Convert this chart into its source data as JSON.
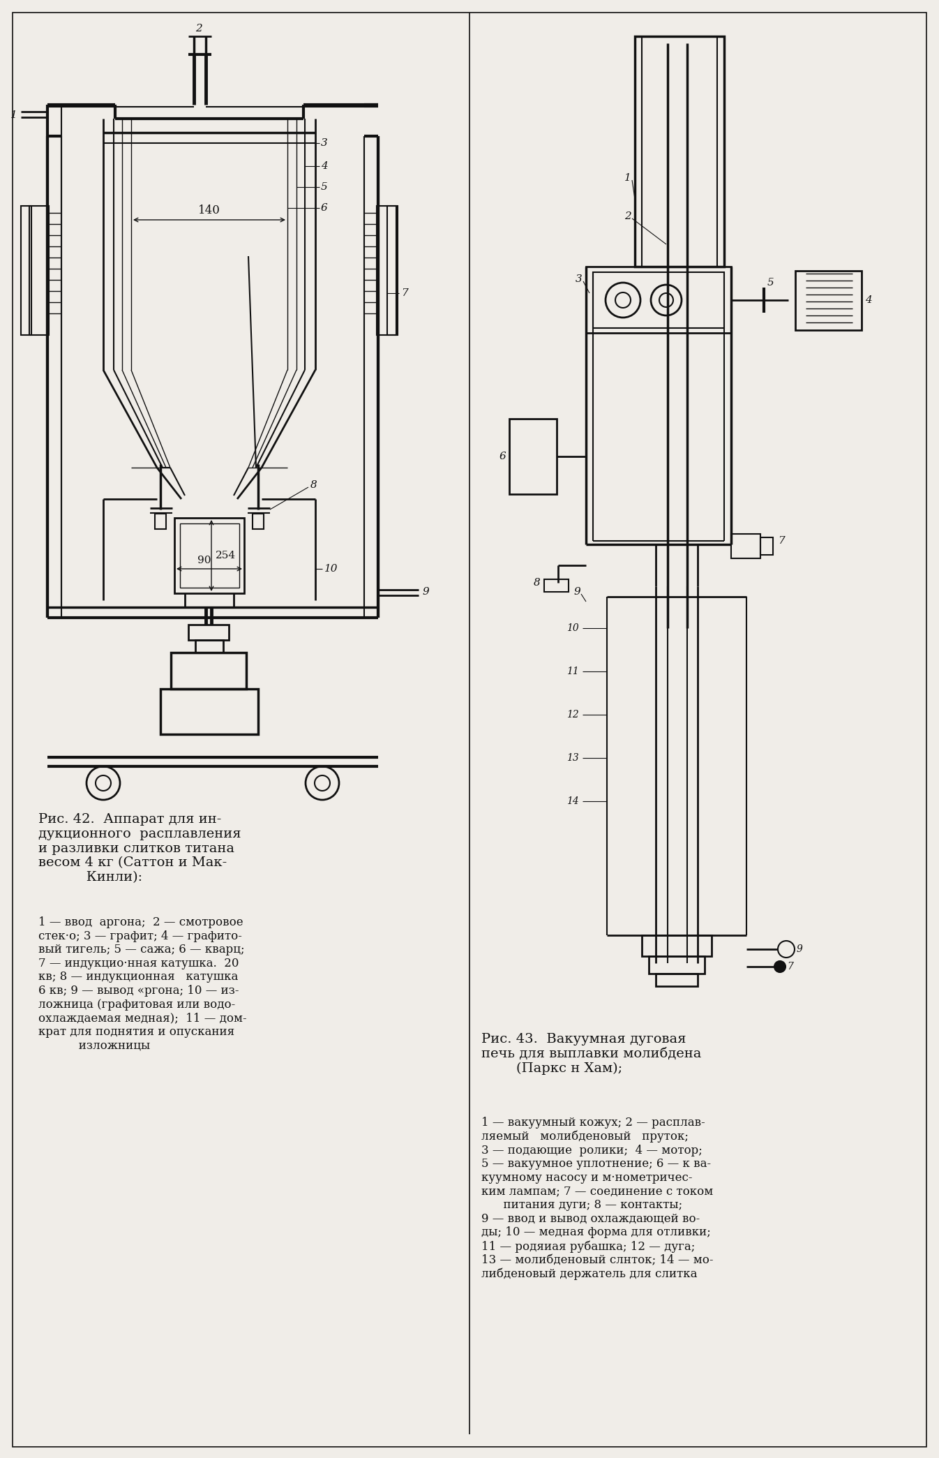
{
  "background_color": "#f0ede8",
  "line_color": "#111111",
  "text_color": "#111111",
  "fig42_caption_title": "Рис. 42.  Аппарат для ин-\nдукционного  расплавления\nи разливки слитков титана\nвесом 4 кг (Саттон и Мак-\n           Кинли):",
  "fig42_caption_body": "1 — ввод  аргона;  2 — смотровое\nстек·о; 3 — графит; 4 — графито-\nвый тигель; 5 — сажа; 6 — кварц;\n7 — индукцио·нная катушка.  20\nкв; 8 — индукционная   катушка\n6 кв; 9 — вывод «ргона; 10 — из-\nложница (графитовая или водо-\nохлаждаемая медная);  11 — дом-\nкрат для поднятия и опускания\n           изложницы",
  "fig43_caption_title": "Рис. 43.  Вакуумная дуговая\nпечь для выплавки молибдена\n        (Паркс н Хам);",
  "fig43_caption_body": "1 — вакуумный кожух; 2 — расплав-\nляемый   молибденовый   пруток;\n3 — подающие  ролики;  4 — мотор;\n5 — вакуумное уплотнение; 6 — к ва-\nкуумному насосу и м·нометричес-\nким лампам; 7 — соединение с током\n      питания дуги; 8 — контакты;\n9 — ввод и вывод охлаждающей во-\nды; 10 — медная форма для отливки;\n11 — родяиая рубашка; 12 — дуга;\n13 — молибденовый слнток; 14 — мо-\nлибденовый держатель для слитка"
}
